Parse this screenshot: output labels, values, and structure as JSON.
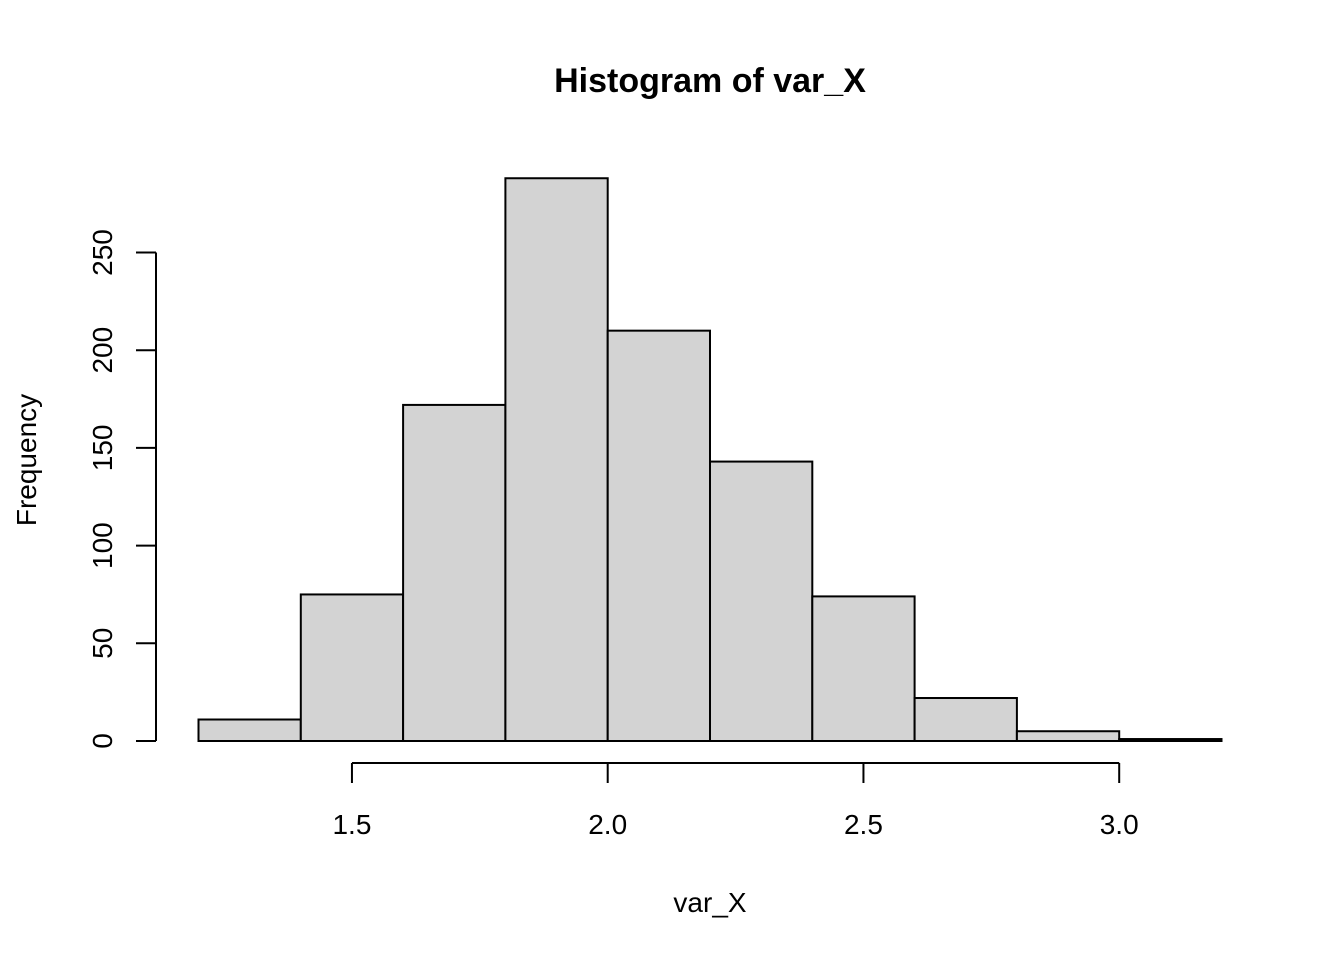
{
  "chart_data": {
    "type": "bar",
    "title": "Histogram of var_X",
    "xlabel": "var_X",
    "ylabel": "Frequency",
    "bins": [
      {
        "start": 1.2,
        "end": 1.4,
        "count": 11
      },
      {
        "start": 1.4,
        "end": 1.6,
        "count": 75
      },
      {
        "start": 1.6,
        "end": 1.8,
        "count": 172
      },
      {
        "start": 1.8,
        "end": 2.0,
        "count": 288
      },
      {
        "start": 2.0,
        "end": 2.2,
        "count": 210
      },
      {
        "start": 2.2,
        "end": 2.4,
        "count": 143
      },
      {
        "start": 2.4,
        "end": 2.6,
        "count": 74
      },
      {
        "start": 2.6,
        "end": 2.8,
        "count": 22
      },
      {
        "start": 2.8,
        "end": 3.0,
        "count": 5
      },
      {
        "start": 3.0,
        "end": 3.2,
        "count": 1
      }
    ],
    "x_ticks": [
      1.5,
      2.0,
      2.5,
      3.0
    ],
    "x_tick_labels": [
      "1.5",
      "2.0",
      "2.5",
      "3.0"
    ],
    "y_ticks": [
      0,
      50,
      100,
      150,
      200,
      250
    ],
    "y_tick_labels": [
      "0",
      "50",
      "100",
      "150",
      "200",
      "250"
    ],
    "xlim": [
      1.2,
      3.2
    ],
    "ylim": [
      0,
      288
    ],
    "bar_fill": "#d3d3d3",
    "bar_stroke": "#000000",
    "grid": false,
    "legend": "none"
  }
}
